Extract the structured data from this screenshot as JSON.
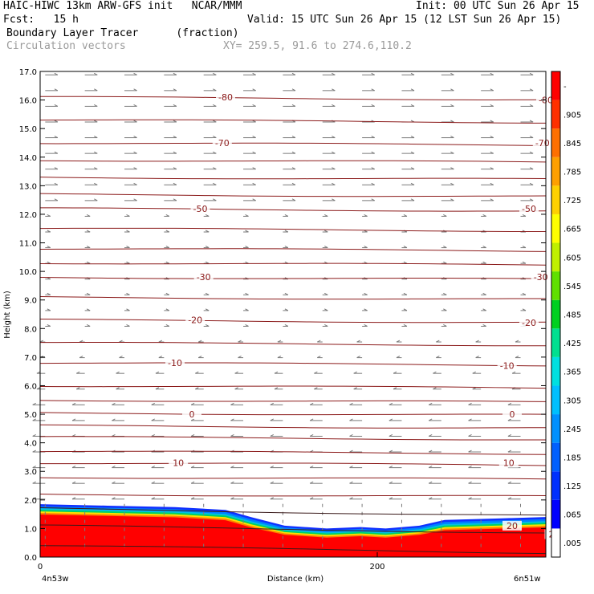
{
  "header": {
    "model_line": "HAIC-HIWC 13km ARW-GFS init   NCAR/MMM",
    "init_line": "Init: 00 UTC Sun 26 Apr 15",
    "fcst_line": "Fcst:   15 h",
    "valid_line": "Valid: 15 UTC Sun 26 Apr 15 (12 LST Sun 26 Apr 15)",
    "field_line": "Boundary Layer Tracer      (fraction)",
    "vectors_line": "Circulation vectors",
    "xy_line": "XY= 259.5, 91.6 to 274.6,110.2"
  },
  "chart_data": {
    "type": "heatmap",
    "xlabel": "Distance (km)",
    "ylabel": "Height (km)",
    "xlim": [
      0,
      300
    ],
    "ylim": [
      0,
      17
    ],
    "x_ticks": [
      0,
      200
    ],
    "y_ticks": [
      "0.0",
      "1.0",
      "2.0",
      "3.0",
      "4.0",
      "5.0",
      "6.0",
      "7.0",
      "8.0",
      "9.0",
      "10.0",
      "11.0",
      "12.0",
      "13.0",
      "14.0",
      "15.0",
      "16.0",
      "17.0"
    ],
    "endpoints": {
      "left": "4n53w",
      "right": "6n51w"
    },
    "colorbar": {
      "labels": [
        ".005",
        ".065",
        ".125",
        ".185",
        ".245",
        ".305",
        ".365",
        ".425",
        ".485",
        ".545",
        ".605",
        ".665",
        ".725",
        ".785",
        ".845",
        ".905",
        "-"
      ],
      "colors": [
        "#ffffff",
        "#0000ff",
        "#0030ff",
        "#0060ff",
        "#0090ff",
        "#00bfff",
        "#00e0e0",
        "#00e090",
        "#00d020",
        "#60e000",
        "#c0f000",
        "#ffff00",
        "#ffd000",
        "#ffa000",
        "#ff7000",
        "#ff3000",
        "#ff0000"
      ]
    },
    "contour_labels": [
      {
        "x": 80,
        "y": 6.8,
        "text": "-10"
      },
      {
        "x": 277,
        "y": 6.7,
        "text": "-10"
      },
      {
        "x": 92,
        "y": 8.3,
        "text": "-20"
      },
      {
        "x": 290,
        "y": 8.2,
        "text": "-20"
      },
      {
        "x": 97,
        "y": 9.8,
        "text": "-30"
      },
      {
        "x": 297,
        "y": 9.8,
        "text": "-30"
      },
      {
        "x": 95,
        "y": 12.2,
        "text": "-50"
      },
      {
        "x": 290,
        "y": 12.2,
        "text": "-50"
      },
      {
        "x": 108,
        "y": 14.5,
        "text": "-70"
      },
      {
        "x": 298,
        "y": 14.5,
        "text": "-70"
      },
      {
        "x": 110,
        "y": 16.1,
        "text": "-80"
      },
      {
        "x": 300,
        "y": 16.0,
        "text": "-80"
      },
      {
        "x": 90,
        "y": 5.0,
        "text": "0"
      },
      {
        "x": 280,
        "y": 5.0,
        "text": "0"
      },
      {
        "x": 82,
        "y": 3.3,
        "text": "10"
      },
      {
        "x": 278,
        "y": 3.3,
        "text": "10"
      },
      {
        "x": 280,
        "y": 1.1,
        "text": "20"
      },
      {
        "x": 305,
        "y": 0.8,
        "text": "20"
      }
    ],
    "isotherm_heights": [
      0.4,
      1.1,
      1.7,
      2.2,
      2.8,
      3.3,
      3.7,
      4.2,
      4.6,
      5.05,
      5.5,
      6.0,
      6.8,
      7.5,
      8.3,
      9.1,
      9.8,
      10.3,
      10.8,
      11.5,
      12.2,
      12.7,
      13.3,
      13.9,
      14.5,
      15.3,
      16.1
    ]
  }
}
